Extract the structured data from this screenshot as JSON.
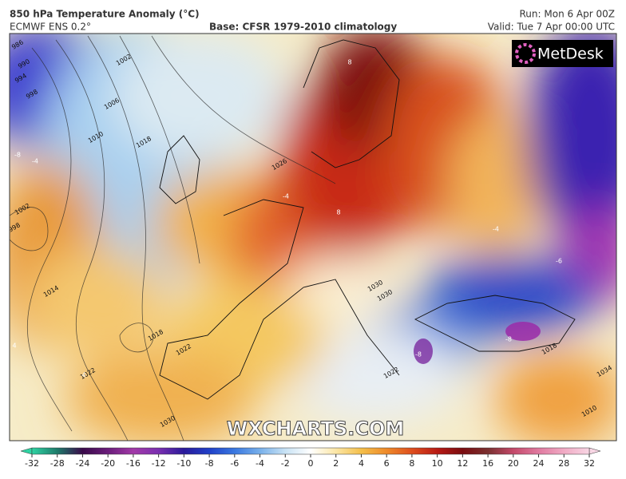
{
  "header": {
    "title": "850 hPa Temperature Anomaly (°C)",
    "model": "ECMWF ENS 0.2°",
    "base": "Base: CFSR 1979-2010 climatology",
    "run": "Run: Mon 6 Apr 00Z",
    "valid": "Valid: Tue 7 Apr 00:00 UTC"
  },
  "logo": "MetDesk",
  "watermark": "WXCHARTS.COM",
  "colorbar": {
    "ticks": [
      -32,
      -28,
      -24,
      -20,
      -16,
      -12,
      -10,
      -8,
      -6,
      -4,
      -2,
      0,
      2,
      4,
      6,
      8,
      10,
      12,
      16,
      20,
      24,
      28,
      32
    ],
    "colors": [
      "#2fd3a3",
      "#1e7a6a",
      "#3a0a4a",
      "#6a1c7a",
      "#a23aa8",
      "#7a2fb0",
      "#2a1a9a",
      "#2040c8",
      "#3a78e0",
      "#78b0ea",
      "#c8e2f4",
      "#ffffff",
      "#fbe6a6",
      "#f4bf4a",
      "#ee8a2a",
      "#de4e1e",
      "#b81a14",
      "#7a0c10",
      "#7a3030",
      "#c44a6a",
      "#e07aa0",
      "#f0aac4",
      "#f8d6e4"
    ]
  },
  "isobar_labels": [
    986,
    990,
    994,
    998,
    1002,
    1006,
    1010,
    1018,
    1026,
    1002,
    998,
    1014,
    1018,
    1022,
    1022,
    1030,
    1030,
    1022,
    1018,
    1034,
    1010,
    1030
  ],
  "anomaly_labels": [
    8,
    8,
    -4,
    -8,
    -4,
    -8,
    -8,
    -6,
    4,
    4,
    -4
  ]
}
